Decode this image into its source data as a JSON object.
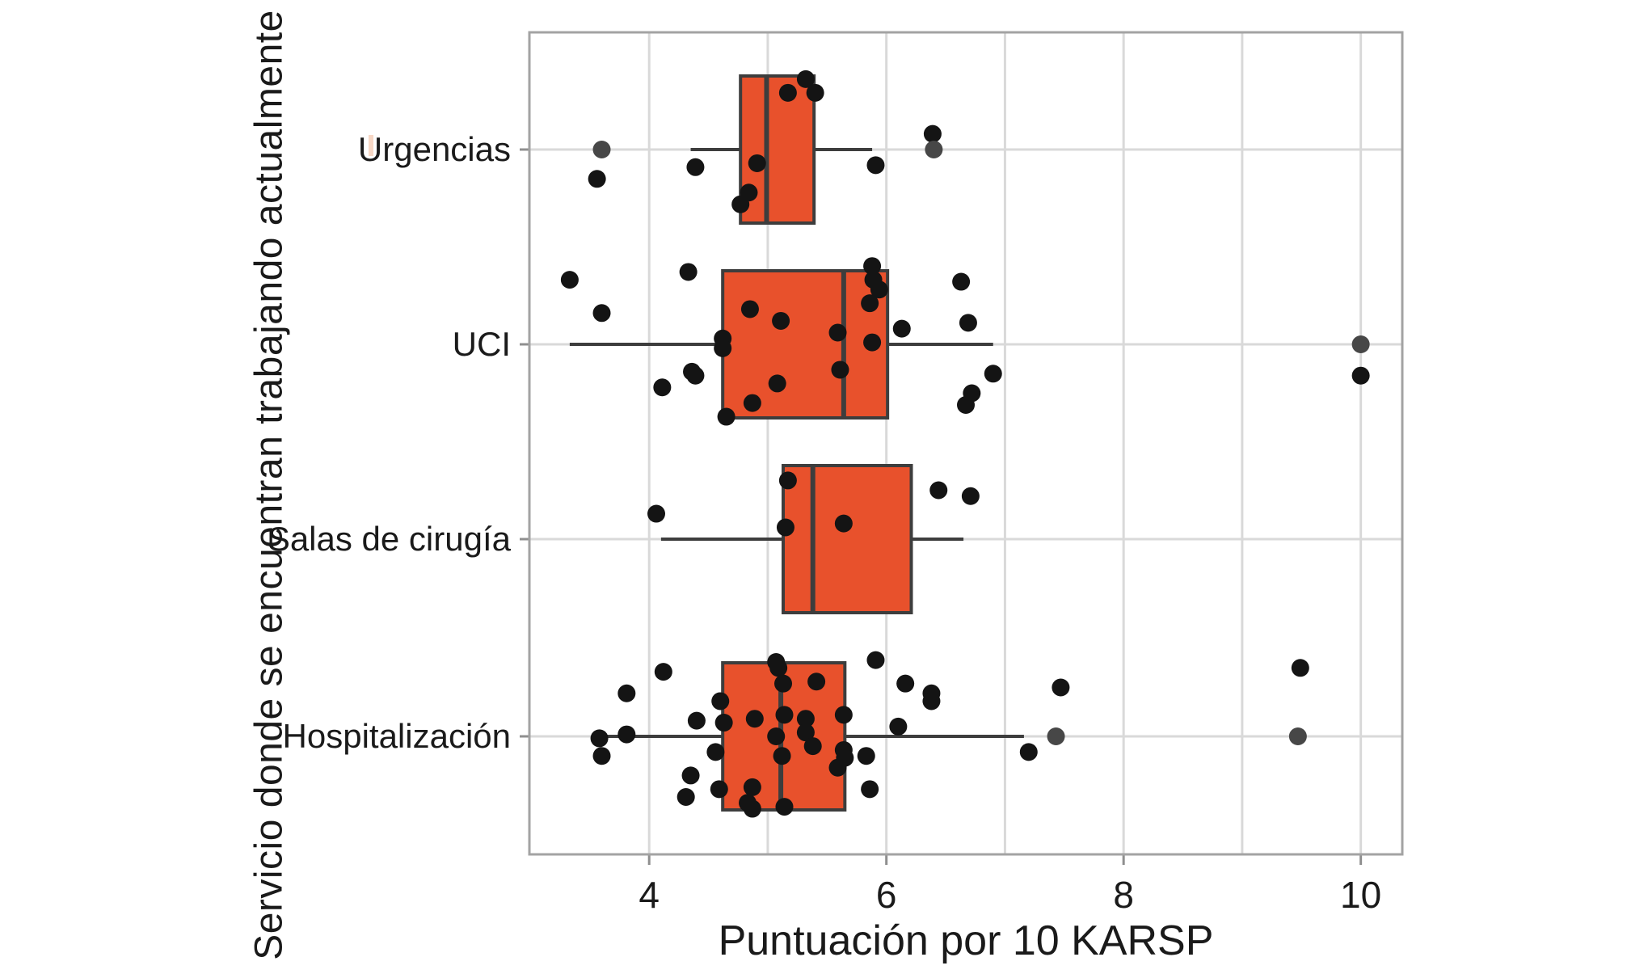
{
  "chart_data": {
    "type": "boxplot",
    "orientation": "horizontal",
    "title": "",
    "xlabel": "Puntuación por 10 KARSP",
    "ylabel": "Servicio donde se encuentran trabajando actualmente",
    "xlim": [
      2.99,
      10.35
    ],
    "x_tick_labels": [
      "4",
      "6",
      "8",
      "10"
    ],
    "x_tick_values": [
      4,
      6,
      8,
      10
    ],
    "x_gridline_values": [
      4,
      5,
      6,
      7,
      8,
      9,
      10
    ],
    "grid": "on",
    "legend": "none",
    "point_format": "[value, vertical_jitter_in_category_units, gray_flag]",
    "categories": [
      {
        "label": "Urgencias",
        "stats": {
          "whisker_low": 4.35,
          "q1": 4.77,
          "median": 4.99,
          "q3": 5.39,
          "whisker_high": 5.88
        },
        "points": [
          [
            3.6,
            0.0,
            1
          ],
          [
            3.56,
            -0.15
          ],
          [
            4.39,
            -0.09
          ],
          [
            4.91,
            -0.07
          ],
          [
            4.84,
            -0.22
          ],
          [
            4.77,
            -0.28
          ],
          [
            5.17,
            0.29
          ],
          [
            5.32,
            0.36
          ],
          [
            5.4,
            0.29
          ],
          [
            5.91,
            -0.08
          ],
          [
            6.39,
            0.08
          ],
          [
            6.4,
            0.0,
            1
          ]
        ]
      },
      {
        "label": "UCI",
        "stats": {
          "whisker_low": 3.33,
          "q1": 4.62,
          "median": 5.64,
          "q3": 6.01,
          "whisker_high": 6.9
        },
        "points": [
          [
            3.33,
            0.33
          ],
          [
            3.6,
            0.16
          ],
          [
            4.11,
            -0.22
          ],
          [
            4.33,
            0.37
          ],
          [
            4.36,
            -0.14
          ],
          [
            4.39,
            -0.16
          ],
          [
            4.62,
            0.03
          ],
          [
            4.62,
            -0.02
          ],
          [
            4.65,
            -0.37
          ],
          [
            4.85,
            0.18
          ],
          [
            4.87,
            -0.3
          ],
          [
            5.08,
            -0.2
          ],
          [
            5.11,
            0.12
          ],
          [
            5.59,
            0.06
          ],
          [
            5.61,
            -0.13
          ],
          [
            5.86,
            0.21
          ],
          [
            5.88,
            0.4
          ],
          [
            5.89,
            0.33
          ],
          [
            5.88,
            0.01
          ],
          [
            5.94,
            0.28
          ],
          [
            6.13,
            0.08
          ],
          [
            6.63,
            0.32
          ],
          [
            6.69,
            0.11
          ],
          [
            6.67,
            -0.31
          ],
          [
            6.72,
            -0.25
          ],
          [
            6.9,
            -0.15
          ],
          [
            10.0,
            0.0,
            1
          ],
          [
            10.0,
            -0.16
          ]
        ]
      },
      {
        "label": "Salas de cirugía",
        "stats": {
          "whisker_low": 4.1,
          "q1": 5.13,
          "median": 5.38,
          "q3": 6.21,
          "whisker_high": 6.65
        },
        "points": [
          [
            4.06,
            0.13
          ],
          [
            5.15,
            0.06
          ],
          [
            5.17,
            0.3
          ],
          [
            5.64,
            0.08
          ],
          [
            6.44,
            0.25
          ],
          [
            6.71,
            0.22
          ]
        ]
      },
      {
        "label": "Hospitalización",
        "stats": {
          "whisker_low": 3.56,
          "q1": 4.62,
          "median": 5.11,
          "q3": 5.65,
          "whisker_high": 7.16
        },
        "points": [
          [
            3.58,
            -0.01
          ],
          [
            3.6,
            -0.1
          ],
          [
            3.81,
            0.22
          ],
          [
            3.81,
            0.01
          ],
          [
            4.12,
            0.33
          ],
          [
            4.31,
            -0.31
          ],
          [
            4.35,
            -0.2
          ],
          [
            4.4,
            0.08
          ],
          [
            4.56,
            -0.08
          ],
          [
            4.59,
            -0.27
          ],
          [
            4.6,
            0.18
          ],
          [
            4.63,
            0.07
          ],
          [
            4.83,
            -0.34
          ],
          [
            4.87,
            -0.26
          ],
          [
            4.87,
            -0.37
          ],
          [
            4.89,
            0.09
          ],
          [
            5.07,
            0.38
          ],
          [
            5.09,
            0.35
          ],
          [
            5.07,
            0.0
          ],
          [
            5.12,
            -0.1
          ],
          [
            5.13,
            0.27
          ],
          [
            5.14,
            0.11
          ],
          [
            5.14,
            -0.36
          ],
          [
            5.32,
            0.09
          ],
          [
            5.32,
            0.02
          ],
          [
            5.38,
            -0.05
          ],
          [
            5.41,
            0.28
          ],
          [
            5.59,
            -0.16
          ],
          [
            5.64,
            0.11
          ],
          [
            5.64,
            -0.07
          ],
          [
            5.65,
            -0.11
          ],
          [
            5.83,
            -0.1
          ],
          [
            5.86,
            -0.27
          ],
          [
            5.91,
            0.39
          ],
          [
            6.1,
            0.05
          ],
          [
            6.16,
            0.27
          ],
          [
            6.38,
            0.22
          ],
          [
            6.38,
            0.18
          ],
          [
            7.2,
            -0.08
          ],
          [
            7.43,
            0.0,
            1
          ],
          [
            7.47,
            0.25
          ],
          [
            9.47,
            0.0,
            1
          ],
          [
            9.49,
            0.35
          ]
        ]
      }
    ],
    "colors": {
      "box_fill": "#E8512C",
      "box_stroke": "#3D3D3D",
      "median_stroke": "#3D3D3D",
      "whisker_stroke": "#3D3D3D",
      "point_black": "#141414",
      "point_gray": "#474747",
      "gridline": "#D9D9D9",
      "panel_border": "#A3A3A3",
      "tick_mark": "#8F8F8F",
      "text": "#1A1A1A",
      "background": "#FFFFFF"
    }
  }
}
